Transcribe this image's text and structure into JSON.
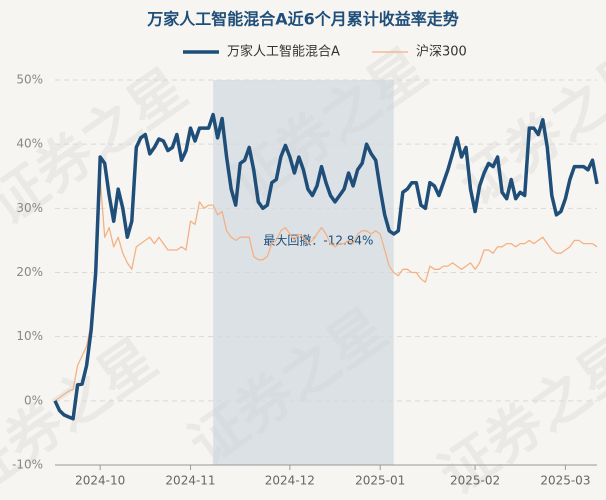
{
  "chart_data": {
    "type": "line",
    "title": "万家人工智能混合A近6个月累计收益率走势",
    "watermark": "证券之星",
    "annotation": "最大回撤：-12.84%",
    "categories": [
      null,
      null,
      null,
      null,
      null,
      null,
      null,
      null,
      null,
      null,
      "2024-10",
      null,
      null,
      null,
      null,
      null,
      null,
      null,
      null,
      null,
      null,
      null,
      null,
      null,
      null,
      null,
      null,
      null,
      null,
      null,
      "2024-11",
      null,
      null,
      null,
      null,
      null,
      null,
      null,
      null,
      null,
      null,
      null,
      null,
      null,
      null,
      null,
      null,
      null,
      null,
      null,
      null,
      null,
      "2024-12",
      null,
      null,
      null,
      null,
      null,
      null,
      null,
      null,
      null,
      null,
      null,
      null,
      null,
      null,
      null,
      null,
      null,
      null,
      null,
      "2025-01",
      null,
      null,
      null,
      null,
      null,
      null,
      null,
      null,
      null,
      null,
      null,
      null,
      null,
      null,
      null,
      null,
      null,
      null,
      null,
      null,
      "2025-02",
      null,
      null,
      null,
      null,
      null,
      null,
      null,
      null,
      null,
      null,
      null,
      null,
      null,
      null,
      null,
      null,
      null,
      null,
      null,
      "2025-03",
      null,
      null,
      null,
      null,
      null,
      null,
      null
    ],
    "series": [
      {
        "name": "万家人工智能混合A",
        "color": "#1f4e79",
        "values": [
          0,
          -1.5,
          -2.2,
          -2.5,
          -2.8,
          2.5,
          2.6,
          5.5,
          11,
          20,
          38,
          37,
          32,
          28,
          33,
          30,
          25.5,
          28,
          39.5,
          41,
          41.5,
          38.5,
          39.5,
          40.8,
          40.5,
          39,
          39.5,
          41.5,
          37.5,
          39,
          42.5,
          40.5,
          42.5,
          42.5,
          42.5,
          44.6,
          41,
          44,
          38,
          33,
          30.5,
          37,
          37.5,
          39.5,
          36,
          31,
          30,
          30.5,
          34,
          34.5,
          38,
          39.8,
          38,
          35.5,
          38,
          36,
          33,
          32,
          33.5,
          36.5,
          34,
          32,
          31,
          32,
          33,
          35.5,
          33.5,
          36,
          37,
          40,
          38.5,
          37.5,
          33,
          29,
          26.5,
          26,
          26.5,
          32.5,
          33,
          34,
          34,
          30.5,
          30,
          34,
          33.5,
          32,
          34,
          36,
          38.5,
          41,
          38,
          39.5,
          33,
          29.5,
          33.5,
          35.5,
          37,
          36.5,
          38,
          32.5,
          31.5,
          34.5,
          31.5,
          32.5,
          32,
          42.5,
          42.5,
          41.5,
          43.8,
          39.5,
          32,
          29,
          29.5,
          31.5,
          34.5,
          36.5,
          36.5,
          36.5,
          36,
          37.5,
          33.8
        ]
      },
      {
        "name": "沪深300",
        "color": "#f4b183",
        "values": [
          0,
          0.5,
          1,
          1.5,
          1.8,
          5.5,
          7,
          8.5,
          12,
          22,
          34.5,
          25.5,
          27,
          24,
          25.5,
          23,
          21.5,
          20.5,
          24,
          24.5,
          25,
          25.5,
          24.5,
          25.5,
          24.5,
          23.5,
          23.5,
          23.5,
          24,
          23.5,
          28,
          27.5,
          31,
          30,
          30.5,
          30.5,
          29,
          29.5,
          26.5,
          25.5,
          25,
          25.5,
          25.5,
          25.5,
          22.5,
          22,
          22,
          22.5,
          24.5,
          25,
          26.5,
          27,
          26,
          25,
          26,
          25.5,
          24.5,
          25,
          26,
          27,
          26,
          24.5,
          24,
          24.5,
          24.5,
          25,
          24.5,
          26,
          26.5,
          26.5,
          26,
          26.5,
          26,
          23.5,
          21,
          20,
          19.5,
          20.5,
          20.5,
          20,
          20,
          19,
          18.5,
          21,
          20.5,
          20.5,
          21,
          21,
          21.5,
          21,
          20.5,
          21,
          21.5,
          20.5,
          21.5,
          23.5,
          23.5,
          23,
          24,
          24,
          24.5,
          24.5,
          24,
          24.5,
          24.5,
          25,
          24.5,
          25,
          25.5,
          24.5,
          23.5,
          23,
          23,
          23.5,
          24,
          25,
          25,
          24.5,
          24.5,
          24.5,
          24
        ]
      }
    ],
    "ylim": [
      -10,
      50
    ],
    "yticks": [
      {
        "value": -10,
        "label": "-10%"
      },
      {
        "value": 0,
        "label": "0%"
      },
      {
        "value": 10,
        "label": "10%"
      },
      {
        "value": 20,
        "label": "20%"
      },
      {
        "value": 30,
        "label": "30%"
      },
      {
        "value": 40,
        "label": "40%"
      },
      {
        "value": 50,
        "label": "50%"
      }
    ],
    "grid": true
  }
}
